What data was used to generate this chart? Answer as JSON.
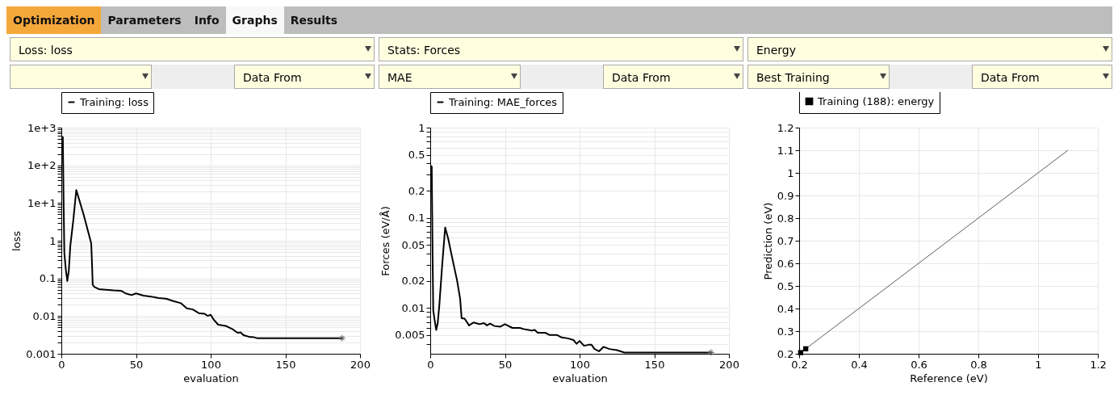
{
  "chart_data": [
    {
      "type": "other",
      "annotations": [
        "Optimization",
        "Parameters",
        "Info",
        "Graphs",
        "Results"
      ]
    },
    {
      "type": "line",
      "title": "Loss: loss",
      "annotations": [
        "Data From"
      ],
      "xlabel": "evaluation",
      "ylabel": "loss",
      "log": "y",
      "grid": true,
      "legend": "top",
      "xlim": [
        0,
        200
      ],
      "xticks": [
        0,
        50,
        100,
        150,
        200
      ],
      "ylim": [
        0.001,
        1000
      ],
      "yticks": [
        {
          "value": 0.001,
          "label": "0.001"
        },
        {
          "value": 0.002,
          "label": null
        },
        {
          "value": 0.003,
          "label": null
        },
        {
          "value": 0.004,
          "label": null
        },
        {
          "value": 0.005,
          "label": null
        },
        {
          "value": 0.006,
          "label": null
        },
        {
          "value": 0.007,
          "label": null
        },
        {
          "value": 0.008,
          "label": null
        },
        {
          "value": 0.009,
          "label": null
        },
        {
          "value": 0.01,
          "label": "0.01"
        },
        {
          "value": 0.02,
          "label": null
        },
        {
          "value": 0.03,
          "label": null
        },
        {
          "value": 0.04,
          "label": null
        },
        {
          "value": 0.05,
          "label": null
        },
        {
          "value": 0.06,
          "label": null
        },
        {
          "value": 0.07,
          "label": null
        },
        {
          "value": 0.08,
          "label": null
        },
        {
          "value": 0.09,
          "label": null
        },
        {
          "value": 0.1,
          "label": "0.1"
        },
        {
          "value": 0.2,
          "label": null
        },
        {
          "value": 0.3,
          "label": null
        },
        {
          "value": 0.4,
          "label": null
        },
        {
          "value": 0.5,
          "label": null
        },
        {
          "value": 0.6,
          "label": null
        },
        {
          "value": 0.7,
          "label": null
        },
        {
          "value": 0.8,
          "label": null
        },
        {
          "value": 0.9,
          "label": null
        },
        {
          "value": 1,
          "label": "1"
        },
        {
          "value": 2,
          "label": null
        },
        {
          "value": 3,
          "label": null
        },
        {
          "value": 4,
          "label": null
        },
        {
          "value": 5,
          "label": null
        },
        {
          "value": 6,
          "label": null
        },
        {
          "value": 7,
          "label": null
        },
        {
          "value": 8,
          "label": null
        },
        {
          "value": 9,
          "label": null
        },
        {
          "value": 10,
          "label": "1e+1"
        },
        {
          "value": 20,
          "label": null
        },
        {
          "value": 30,
          "label": null
        },
        {
          "value": 40,
          "label": null
        },
        {
          "value": 50,
          "label": null
        },
        {
          "value": 60,
          "label": null
        },
        {
          "value": 70,
          "label": null
        },
        {
          "value": 80,
          "label": null
        },
        {
          "value": 90,
          "label": null
        },
        {
          "value": 100,
          "label": "1e+2"
        },
        {
          "value": 200,
          "label": null
        },
        {
          "value": 300,
          "label": null
        },
        {
          "value": 400,
          "label": null
        },
        {
          "value": 500,
          "label": null
        },
        {
          "value": 600,
          "label": null
        },
        {
          "value": 700,
          "label": null
        },
        {
          "value": 800,
          "label": null
        },
        {
          "value": 900,
          "label": null
        },
        {
          "value": 1000,
          "label": "1e+3"
        }
      ],
      "series": [
        {
          "name": "Training: loss",
          "type": "line",
          "color": "#000000",
          "x": [
            0,
            1,
            1.5,
            2,
            3,
            4,
            5,
            6,
            8,
            10,
            12,
            15,
            18,
            20,
            20.5,
            21,
            22,
            25,
            30,
            35,
            40,
            43,
            47,
            50,
            55,
            60,
            65,
            70,
            75,
            80,
            84,
            88,
            92,
            96,
            98,
            100,
            102,
            105,
            110,
            115,
            118,
            120,
            122,
            126,
            128,
            131,
            188
          ],
          "values": [
            560,
            560,
            12,
            0.48,
            0.17,
            0.085,
            0.16,
            0.73,
            3.5,
            22,
            12,
            4.8,
            1.7,
            0.85,
            0.27,
            0.068,
            0.06,
            0.052,
            0.05,
            0.048,
            0.047,
            0.04,
            0.036,
            0.04,
            0.035,
            0.033,
            0.03,
            0.029,
            0.025,
            0.022,
            0.016,
            0.015,
            0.012,
            0.0115,
            0.0101,
            0.0108,
            0.0081,
            0.0059,
            0.0055,
            0.0044,
            0.0036,
            0.0037,
            0.0031,
            0.0028,
            0.0028,
            0.0026,
            0.0026
          ]
        },
        {
          "type": "scatter",
          "marker": "cross",
          "color": "#555555",
          "x": [
            188
          ],
          "values": [
            0.0026
          ]
        }
      ]
    },
    {
      "type": "line",
      "title": "Stats: Forces",
      "annotations": [
        "MAE",
        "Data From"
      ],
      "xlabel": "evaluation",
      "ylabel": "Forces (eV/Å)",
      "log": "y",
      "grid": true,
      "legend": "top",
      "xlim": [
        0,
        200
      ],
      "xticks": [
        0,
        50,
        100,
        150,
        200
      ],
      "ylim": [
        0.0031,
        1
      ],
      "yticks": [
        {
          "value": 0.004,
          "label": null
        },
        {
          "value": 0.005,
          "label": "0.005"
        },
        {
          "value": 0.006,
          "label": null
        },
        {
          "value": 0.007,
          "label": null
        },
        {
          "value": 0.008,
          "label": null
        },
        {
          "value": 0.009,
          "label": null
        },
        {
          "value": 0.01,
          "label": "0.01"
        },
        {
          "value": 0.02,
          "label": "0.02"
        },
        {
          "value": 0.03,
          "label": null
        },
        {
          "value": 0.04,
          "label": null
        },
        {
          "value": 0.05,
          "label": "0.05"
        },
        {
          "value": 0.06,
          "label": null
        },
        {
          "value": 0.07,
          "label": null
        },
        {
          "value": 0.08,
          "label": null
        },
        {
          "value": 0.09,
          "label": null
        },
        {
          "value": 0.1,
          "label": "0.1"
        },
        {
          "value": 0.2,
          "label": "0.2"
        },
        {
          "value": 0.3,
          "label": null
        },
        {
          "value": 0.4,
          "label": null
        },
        {
          "value": 0.5,
          "label": "0.5"
        },
        {
          "value": 0.6,
          "label": null
        },
        {
          "value": 0.7,
          "label": null
        },
        {
          "value": 0.8,
          "label": null
        },
        {
          "value": 0.9,
          "label": null
        },
        {
          "value": 1,
          "label": "1"
        }
      ],
      "series": [
        {
          "name": "Training: MAE_forces",
          "type": "line",
          "color": "#000000",
          "x": [
            0,
            1,
            1.5,
            2,
            3,
            4,
            5,
            6,
            8,
            10,
            12,
            15,
            18,
            20,
            21,
            23,
            26,
            29,
            33,
            36,
            38,
            40,
            43,
            47,
            50,
            55,
            60,
            63,
            68,
            70,
            72,
            77,
            80,
            85,
            88,
            92,
            96,
            98,
            100,
            103,
            106,
            108,
            110,
            113,
            116,
            120,
            125,
            130,
            140,
            188
          ],
          "values": [
            0.38,
            0.37,
            0.049,
            0.0094,
            0.0072,
            0.0057,
            0.0068,
            0.0103,
            0.03,
            0.078,
            0.059,
            0.034,
            0.02,
            0.0127,
            0.0077,
            0.0076,
            0.0064,
            0.0069,
            0.0066,
            0.0068,
            0.0064,
            0.0067,
            0.0063,
            0.0062,
            0.0066,
            0.006,
            0.006,
            0.0058,
            0.0056,
            0.0057,
            0.0053,
            0.0053,
            0.005,
            0.005,
            0.0047,
            0.0046,
            0.0044,
            0.004,
            0.0043,
            0.0038,
            0.0039,
            0.0039,
            0.0035,
            0.0033,
            0.0037,
            0.0035,
            0.0034,
            0.0032,
            0.0032,
            0.0032
          ]
        },
        {
          "type": "scatter",
          "marker": "cross",
          "color": "#555555",
          "x": [
            188
          ],
          "values": [
            0.0032
          ]
        }
      ]
    },
    {
      "type": "scatter",
      "title": "Energy",
      "annotations": [
        "Best Training",
        "Data From"
      ],
      "xlabel": "Reference (eV)",
      "ylabel": "Prediction (eV)",
      "grid": true,
      "legend": "top",
      "xlim": [
        0.2,
        1.2
      ],
      "xticks": [
        0.2,
        0.4,
        0.6,
        0.8,
        1,
        1.2
      ],
      "ylim": [
        0.2,
        1.2
      ],
      "yticks": [
        0.2,
        0.3,
        0.4,
        0.5,
        0.6,
        0.7,
        0.8,
        0.9,
        1,
        1.1,
        1.2
      ],
      "series": [
        {
          "type": "line",
          "color": "#333333",
          "x": [
            0.2,
            1.1
          ],
          "values": [
            0.2,
            1.1
          ]
        },
        {
          "name": "Training (188): energy",
          "type": "scatter",
          "marker": "square",
          "color": "#000000",
          "x": [
            0.205,
            0.222
          ],
          "values": [
            0.205,
            0.222
          ]
        }
      ]
    }
  ]
}
